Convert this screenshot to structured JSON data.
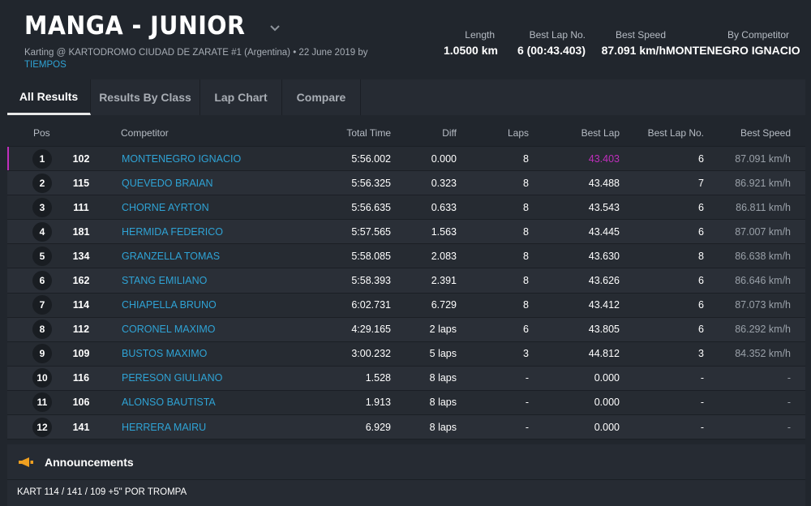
{
  "header": {
    "title": "MANGA - JUNIOR",
    "subtitle_text": "Karting @ KARTODROMO CIUDAD DE ZARATE #1 (Argentina) • 22 June 2019 by",
    "subtitle_link": "TIEMPOS",
    "stats": [
      {
        "label": "Length",
        "value": "1.0500 km"
      },
      {
        "label": "Best Lap No.",
        "value": "6 (00:43.403)"
      },
      {
        "label": "Best Speed",
        "value": "87.091 km/h"
      },
      {
        "label": "By Competitor",
        "value": "MONTENEGRO IGNACIO"
      }
    ]
  },
  "tabs": [
    "All Results",
    "Results By Class",
    "Lap Chart",
    "Compare"
  ],
  "active_tab": "All Results",
  "table": {
    "columns": [
      "Pos",
      "Competitor",
      "Total Time",
      "Diff",
      "Laps",
      "Best Lap",
      "Best Lap No.",
      "Best Speed"
    ],
    "rows": [
      {
        "pos": "1",
        "kart": "102",
        "competitor": "MONTENEGRO IGNACIO",
        "total": "5:56.002",
        "diff": "0.000",
        "laps": "8",
        "best": "43.403",
        "best_no": "6",
        "speed": "87.091 km/h"
      },
      {
        "pos": "2",
        "kart": "115",
        "competitor": "QUEVEDO BRAIAN",
        "total": "5:56.325",
        "diff": "0.323",
        "laps": "8",
        "best": "43.488",
        "best_no": "7",
        "speed": "86.921 km/h"
      },
      {
        "pos": "3",
        "kart": "111",
        "competitor": "CHORNE AYRTON",
        "total": "5:56.635",
        "diff": "0.633",
        "laps": "8",
        "best": "43.543",
        "best_no": "6",
        "speed": "86.811 km/h"
      },
      {
        "pos": "4",
        "kart": "181",
        "competitor": "HERMIDA FEDERICO",
        "total": "5:57.565",
        "diff": "1.563",
        "laps": "8",
        "best": "43.445",
        "best_no": "6",
        "speed": "87.007 km/h"
      },
      {
        "pos": "5",
        "kart": "134",
        "competitor": "GRANZELLA TOMAS",
        "total": "5:58.085",
        "diff": "2.083",
        "laps": "8",
        "best": "43.630",
        "best_no": "8",
        "speed": "86.638 km/h"
      },
      {
        "pos": "6",
        "kart": "162",
        "competitor": "STANG EMILIANO",
        "total": "5:58.393",
        "diff": "2.391",
        "laps": "8",
        "best": "43.626",
        "best_no": "6",
        "speed": "86.646 km/h"
      },
      {
        "pos": "7",
        "kart": "114",
        "competitor": "CHIAPELLA BRUNO",
        "total": "6:02.731",
        "diff": "6.729",
        "laps": "8",
        "best": "43.412",
        "best_no": "6",
        "speed": "87.073 km/h"
      },
      {
        "pos": "8",
        "kart": "112",
        "competitor": "CORONEL MAXIMO",
        "total": "4:29.165",
        "diff": "2 laps",
        "laps": "6",
        "best": "43.805",
        "best_no": "6",
        "speed": "86.292 km/h"
      },
      {
        "pos": "9",
        "kart": "109",
        "competitor": "BUSTOS MAXIMO",
        "total": "3:00.232",
        "diff": "5 laps",
        "laps": "3",
        "best": "44.812",
        "best_no": "3",
        "speed": "84.352 km/h"
      },
      {
        "pos": "10",
        "kart": "116",
        "competitor": "PERESON GIULIANO",
        "total": "1.528",
        "diff": "8 laps",
        "laps": "-",
        "best": "0.000",
        "best_no": "-",
        "speed": "-"
      },
      {
        "pos": "11",
        "kart": "106",
        "competitor": "ALONSO BAUTISTA",
        "total": "1.913",
        "diff": "8 laps",
        "laps": "-",
        "best": "0.000",
        "best_no": "-",
        "speed": "-"
      },
      {
        "pos": "12",
        "kart": "141",
        "competitor": "HERRERA MAIRU",
        "total": "6.929",
        "diff": "8 laps",
        "laps": "-",
        "best": "0.000",
        "best_no": "-",
        "speed": "-"
      }
    ]
  },
  "announcements": {
    "title": "Announcements",
    "text": "KART 114 / 141 / 109 +5\" POR TROMPA"
  },
  "colors": {
    "link": "#2fa3d5",
    "highlight": "#c02ebd",
    "announce_icon": "#f0a020"
  }
}
